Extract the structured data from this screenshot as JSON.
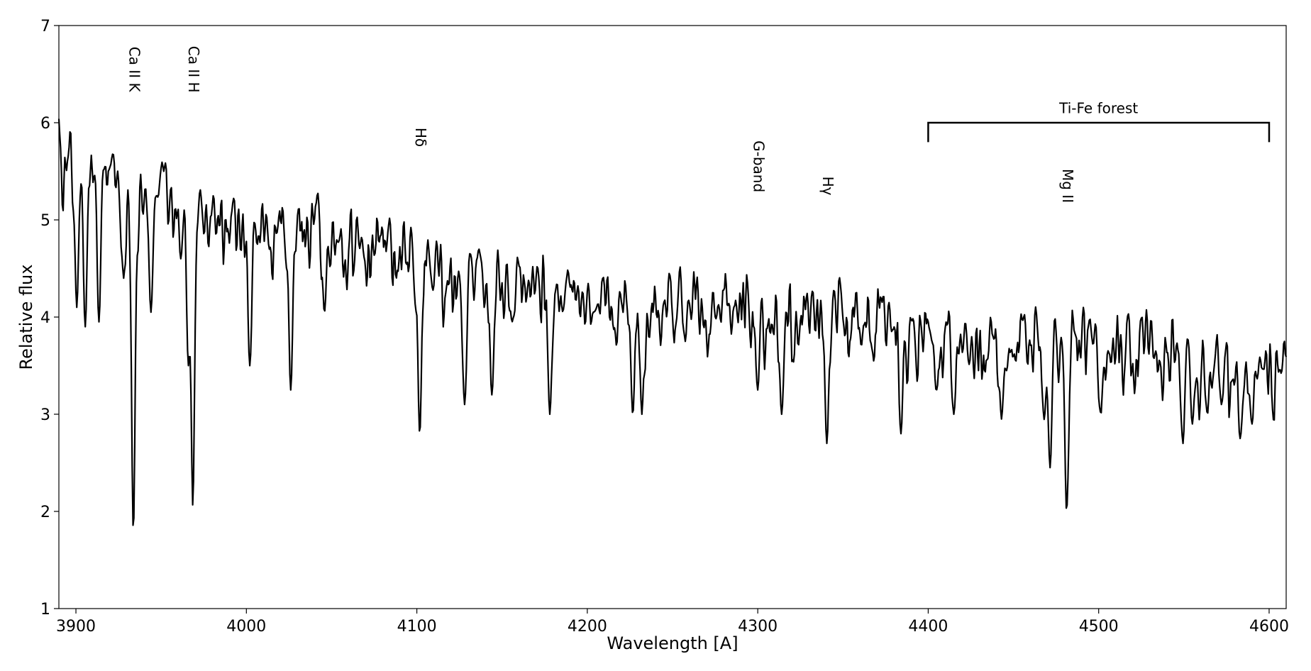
{
  "chart_data": {
    "type": "line",
    "xlabel": "Wavelength [A]",
    "ylabel": "Relative flux",
    "xlim": [
      3890,
      4610
    ],
    "ylim": [
      1,
      7
    ],
    "xticks": [
      3900,
      4000,
      4100,
      4200,
      4300,
      4400,
      4500,
      4600
    ],
    "yticks": [
      1,
      2,
      3,
      4,
      5,
      6,
      7
    ],
    "grid": false,
    "series": [
      {
        "color": "#000000",
        "continuum": [
          [
            3890,
            6.2
          ],
          [
            3920,
            6.0
          ],
          [
            3950,
            5.8
          ],
          [
            4000,
            5.45
          ],
          [
            4050,
            5.35
          ],
          [
            4100,
            5.15
          ],
          [
            4150,
            4.85
          ],
          [
            4200,
            4.7
          ],
          [
            4250,
            4.65
          ],
          [
            4300,
            4.6
          ],
          [
            4350,
            4.5
          ],
          [
            4400,
            4.35
          ],
          [
            4450,
            4.3
          ],
          [
            4500,
            4.25
          ],
          [
            4550,
            4.15
          ],
          [
            4600,
            4.0
          ],
          [
            4610,
            4.0
          ]
        ],
        "features": [
          {
            "x": 3933.7,
            "y": 1.8
          },
          {
            "x": 3968.5,
            "y": 1.95
          },
          {
            "x": 3900.5,
            "y": 4.1
          },
          {
            "x": 3905.5,
            "y": 3.9
          },
          {
            "x": 3913.5,
            "y": 3.95
          },
          {
            "x": 3928.0,
            "y": 4.4
          },
          {
            "x": 3944.0,
            "y": 4.05
          },
          {
            "x": 3961.5,
            "y": 4.6
          },
          {
            "x": 3966.0,
            "y": 3.5
          },
          {
            "x": 4002.0,
            "y": 3.5
          },
          {
            "x": 4026.0,
            "y": 3.25
          },
          {
            "x": 4045.8,
            "y": 4.05
          },
          {
            "x": 4101.7,
            "y": 2.8
          },
          {
            "x": 4128.0,
            "y": 3.1
          },
          {
            "x": 4144.0,
            "y": 3.2
          },
          {
            "x": 4178.0,
            "y": 3.0
          },
          {
            "x": 4226.7,
            "y": 3.0
          },
          {
            "x": 4232.0,
            "y": 3.0
          },
          {
            "x": 4300.0,
            "y": 3.25
          },
          {
            "x": 4314.0,
            "y": 3.0
          },
          {
            "x": 4340.5,
            "y": 2.7
          },
          {
            "x": 4384.0,
            "y": 2.8
          },
          {
            "x": 4404.8,
            "y": 3.25
          },
          {
            "x": 4415.0,
            "y": 3.0
          },
          {
            "x": 4443.0,
            "y": 2.95
          },
          {
            "x": 4468.0,
            "y": 2.95
          },
          {
            "x": 4471.5,
            "y": 2.45
          },
          {
            "x": 4481.2,
            "y": 2.0
          },
          {
            "x": 4501.3,
            "y": 3.0
          },
          {
            "x": 4549.5,
            "y": 2.7
          },
          {
            "x": 4555.0,
            "y": 2.9
          },
          {
            "x": 4563.8,
            "y": 3.0
          },
          {
            "x": 4572.0,
            "y": 3.1
          },
          {
            "x": 4583.0,
            "y": 2.75
          },
          {
            "x": 4590.0,
            "y": 2.9
          }
        ]
      }
    ],
    "annotations": [
      {
        "text": "Ca II K",
        "x": 3933.7,
        "y": 6.55,
        "rotation": 90
      },
      {
        "text": "Ca II H",
        "x": 3968.5,
        "y": 6.55,
        "rotation": 90
      },
      {
        "text": "Hδ",
        "x": 4101.7,
        "y": 5.85,
        "rotation": 90
      },
      {
        "text": "G-band",
        "x": 4300.0,
        "y": 5.55,
        "rotation": 90
      },
      {
        "text": "Hγ",
        "x": 4340.5,
        "y": 5.35,
        "rotation": 90
      },
      {
        "text": "Mg II",
        "x": 4481.2,
        "y": 5.35,
        "rotation": 90
      },
      {
        "text": "Ti-Fe forest",
        "x": 4500.0,
        "y": 6.1,
        "rotation": 0
      }
    ],
    "brackets": [
      {
        "x0": 4400,
        "x1": 4600,
        "y": 6.0,
        "tick_bottom": 5.8
      }
    ]
  }
}
